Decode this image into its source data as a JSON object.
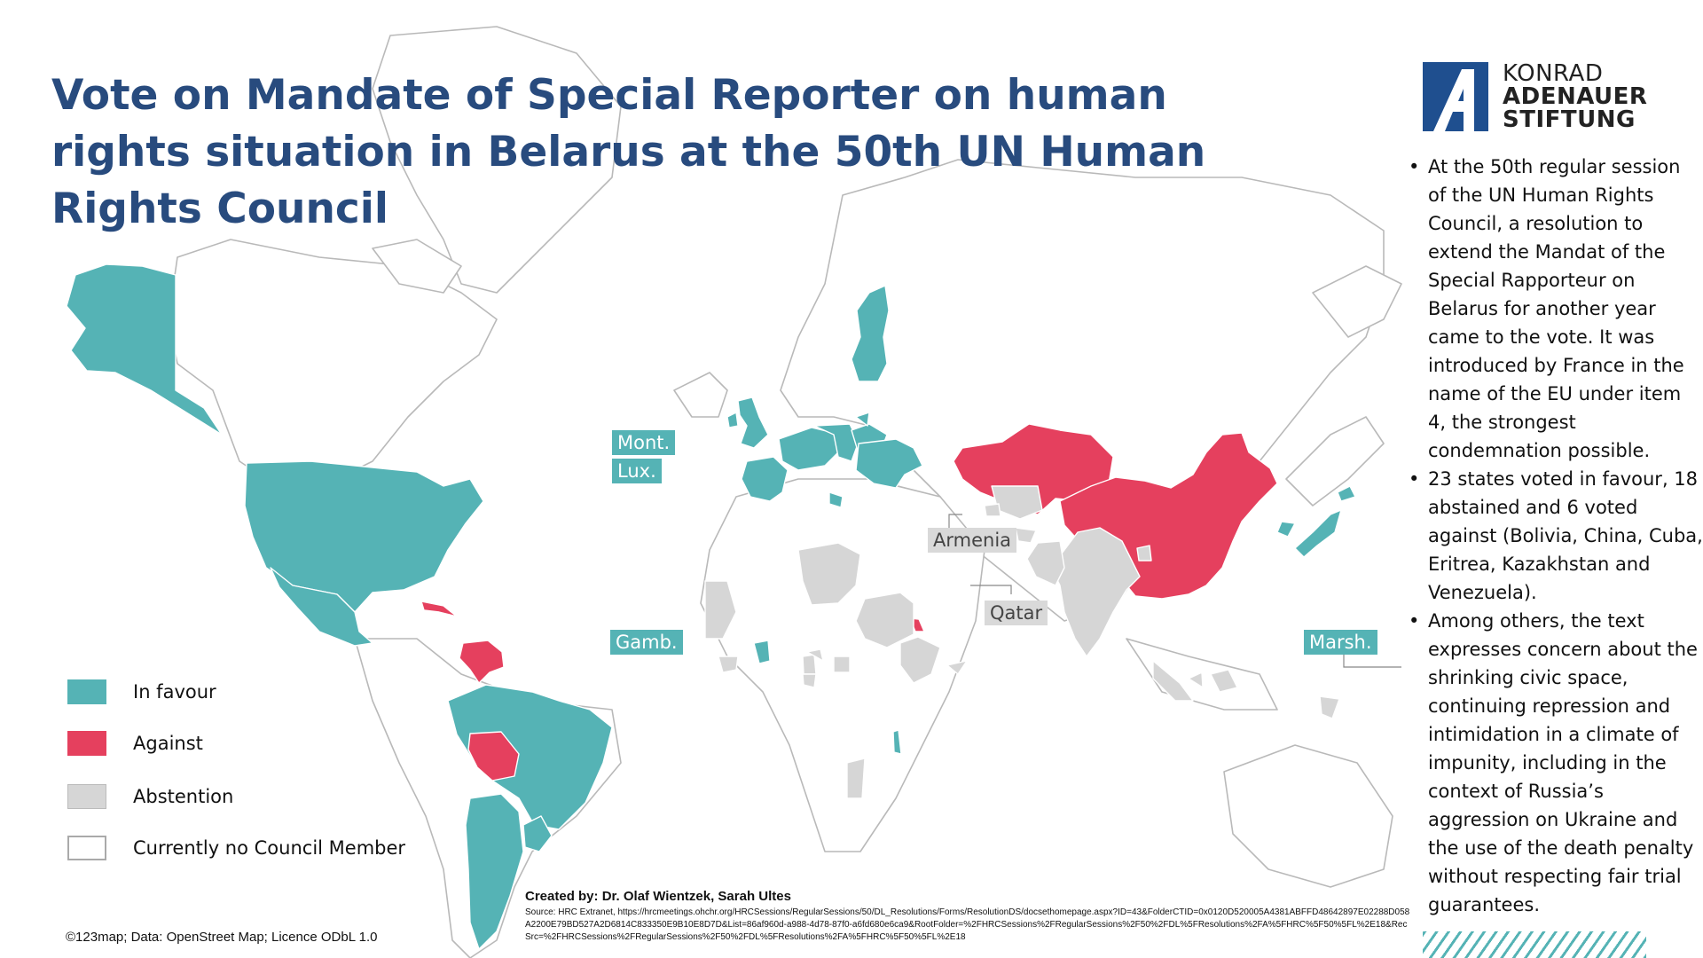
{
  "title": "Vote on Mandate of Special Reporter on human rights situation in Belarus at the 50th UN Human Rights Council",
  "colors": {
    "in_favour": "#55b3b5",
    "against": "#e5405e",
    "abstention": "#d6d6d6",
    "no_member": "#ffffff",
    "title": "#284b7e"
  },
  "country_labels": {
    "montenegro": "Mont.",
    "luxembourg": "Lux.",
    "armenia": "Armenia",
    "qatar": "Qatar",
    "gambia": "Gamb.",
    "marshall": "Marsh."
  },
  "legend": [
    {
      "label": "In favour",
      "status": "in_favour"
    },
    {
      "label": "Against",
      "status": "against"
    },
    {
      "label": "Abstention",
      "status": "abstention"
    },
    {
      "label": "Currently no Council Member",
      "status": "no_member"
    }
  ],
  "map_credit": "©123map; Data: OpenStreet Map; Licence ODbL 1.0",
  "created_by": "Created by: Dr. Olaf Wientzek, Sarah Ultes",
  "source": "Source: HRC Extranet, https://hrcmeetings.ohchr.org/HRCSessions/RegularSessions/50/DL_Resolutions/Forms/ResolutionDS/docsethomepage.aspx?ID=43&FolderCTID=0x0120D520005A4381ABFFD48642897E02288D058A2200E79BD527A2D6814C833350E9B10E8D7D&List=86af960d-a988-4d78-87f0-a6fd680e6ca9&RootFolder=%2FHRCSessions%2FRegularSessions%2F50%2FDL%5FResolutions%2FA%5FHRC%5F50%5FL%2E18&RecSrc=%2FHRCSessions%2FRegularSessions%2F50%2FDL%5FResolutions%2FA%5FHRC%5F50%5FL%2E18",
  "logo": {
    "line1": "KONRAD",
    "line2": "ADENAUER",
    "line3": "STIFTUNG",
    "icon": "kas-logo-icon"
  },
  "bullets": [
    "At the 50th regular session of the UN Human Rights Council, a resolution to extend the Mandat of the Special Rapporteur on Belarus for another year came to the vote. It was introduced by France in the name of the EU under item 4, the strongest condemnation possible.",
    "23 states voted in favour, 18 abstained and 6 voted against (Bolivia, China, Cuba, Eritrea, Kazakhstan and Venezuela).",
    "Among others, the text expresses concern about the shrinking civic space, continuing repression and intimidation in a climate of impunity, including in the context of Russia’s aggression on Ukraine and the use of the death penalty without respecting fair trial guarantees."
  ]
}
